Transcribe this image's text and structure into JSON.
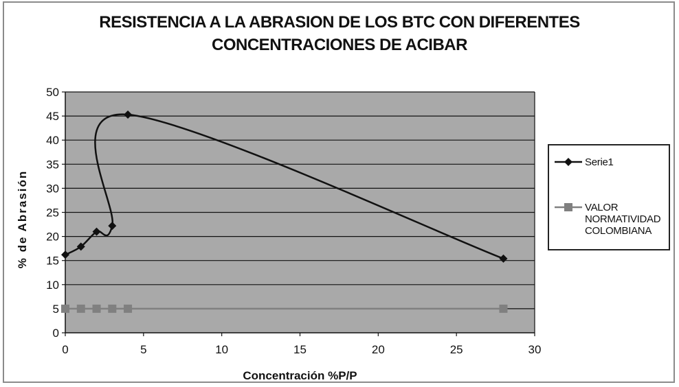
{
  "chart_data": {
    "type": "line",
    "title_lines": [
      "RESISTENCIA A LA ABRASION DE LOS BTC CON DIFERENTES",
      "CONCENTRACIONES DE ACIBAR"
    ],
    "xlabel": "Concentración %P/P",
    "ylabel": "% de Abrasión",
    "xlim": [
      0,
      30
    ],
    "ylim": [
      0,
      50
    ],
    "xticks": [
      0,
      5,
      10,
      15,
      20,
      25,
      30
    ],
    "yticks": [
      0,
      5,
      10,
      15,
      20,
      25,
      30,
      35,
      40,
      45,
      50
    ],
    "grid": "horizontal",
    "legend_position": "right",
    "series": [
      {
        "name": "Serie1",
        "color": "#111111",
        "marker": "diamond",
        "smooth": true,
        "x": [
          0,
          1,
          2,
          3,
          4,
          28
        ],
        "y": [
          16.2,
          17.9,
          21.0,
          22.2,
          45.3,
          15.4
        ]
      },
      {
        "name": "VALOR\nNORMATIVIDAD\nCOLOMBIANA",
        "color": "#808080",
        "marker": "square",
        "smooth": false,
        "x": [
          0,
          1,
          2,
          3,
          4,
          28
        ],
        "y": [
          5,
          5,
          5,
          5,
          5,
          5
        ]
      }
    ],
    "plot_background": "#a9a9a9"
  }
}
